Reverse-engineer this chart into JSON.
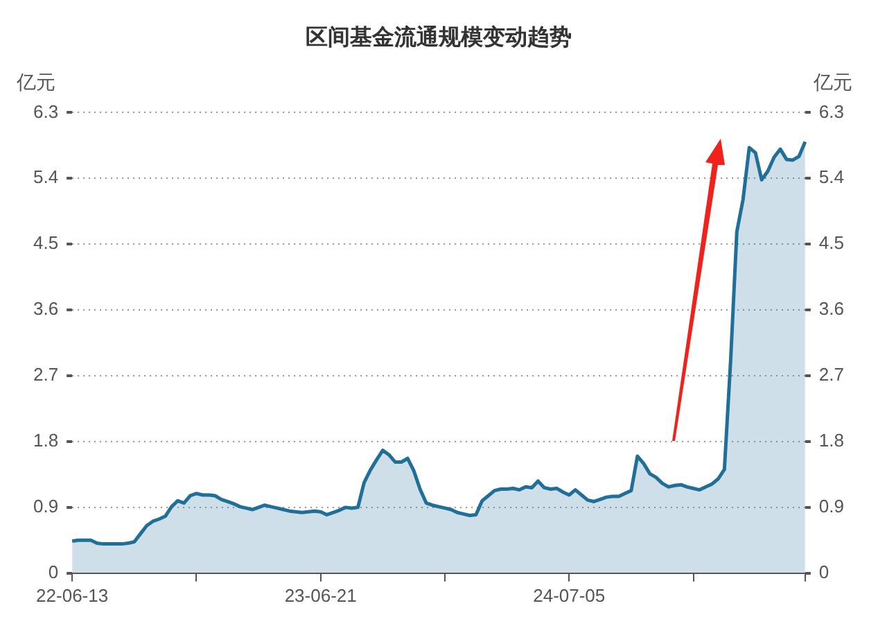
{
  "chart_data": {
    "type": "area",
    "title": "区间基金流通规模变动趋势",
    "ylabel": "亿元",
    "y2label": "亿元",
    "categories": [
      "22-06-13",
      null,
      null,
      null,
      null,
      null,
      null,
      null,
      null,
      null,
      null,
      null,
      null,
      null,
      null,
      null,
      null,
      null,
      null,
      null,
      null,
      null,
      null,
      null,
      null,
      null,
      null,
      null,
      null,
      null,
      null,
      null,
      null,
      null,
      null,
      null,
      null,
      null,
      null,
      null,
      "23-06-21",
      null,
      null,
      null,
      null,
      null,
      null,
      null,
      null,
      null,
      null,
      null,
      null,
      null,
      null,
      null,
      null,
      null,
      null,
      null,
      null,
      null,
      null,
      null,
      null,
      null,
      null,
      null,
      null,
      null,
      null,
      null,
      null,
      null,
      null,
      null,
      null,
      null,
      null,
      null,
      "24-07-05",
      null,
      null,
      null,
      null,
      null,
      null,
      null,
      null,
      null,
      null,
      null,
      null,
      null,
      null,
      null,
      null,
      null,
      null,
      null,
      null,
      null,
      null,
      null,
      null,
      null,
      null,
      null,
      null,
      null,
      null,
      null,
      null,
      null,
      null,
      null,
      null,
      null,
      null
    ],
    "series": [
      {
        "color": "#1f6f99",
        "values": [
          0.44,
          0.45,
          0.45,
          0.45,
          0.41,
          0.4,
          0.4,
          0.4,
          0.4,
          0.41,
          0.43,
          0.54,
          0.65,
          0.71,
          0.74,
          0.78,
          0.91,
          0.99,
          0.96,
          1.06,
          1.09,
          1.07,
          1.07,
          1.06,
          1.01,
          0.98,
          0.95,
          0.91,
          0.89,
          0.87,
          0.9,
          0.93,
          0.91,
          0.89,
          0.87,
          0.85,
          0.84,
          0.83,
          0.84,
          0.85,
          0.84,
          0.8,
          0.83,
          0.86,
          0.9,
          0.89,
          0.9,
          1.24,
          1.41,
          1.55,
          1.68,
          1.62,
          1.52,
          1.52,
          1.57,
          1.4,
          1.15,
          0.96,
          0.93,
          0.91,
          0.89,
          0.87,
          0.83,
          0.81,
          0.79,
          0.8,
          0.99,
          1.06,
          1.13,
          1.15,
          1.15,
          1.16,
          1.14,
          1.18,
          1.17,
          1.26,
          1.17,
          1.15,
          1.16,
          1.11,
          1.07,
          1.14,
          1.07,
          1.0,
          0.98,
          1.01,
          1.04,
          1.05,
          1.05,
          1.09,
          1.13,
          1.6,
          1.5,
          1.36,
          1.31,
          1.23,
          1.18,
          1.2,
          1.21,
          1.18,
          1.16,
          1.14,
          1.18,
          1.22,
          1.29,
          1.42,
          2.9,
          4.67,
          5.11,
          5.82,
          5.75,
          5.38,
          5.5,
          5.69,
          5.8,
          5.66,
          5.65,
          5.7,
          5.9
        ]
      }
    ],
    "ylim": [
      0,
      6.3
    ],
    "yticks": [
      0,
      0.9,
      1.8,
      2.7,
      3.6,
      4.5,
      5.4,
      6.3
    ],
    "y2lim": [
      0,
      6.3
    ],
    "y2ticks": [
      0,
      0.9,
      1.8,
      2.7,
      3.6,
      4.5,
      5.4,
      6.3
    ],
    "grid": "y",
    "legend": false,
    "marker": "none",
    "line_style": "solid"
  }
}
